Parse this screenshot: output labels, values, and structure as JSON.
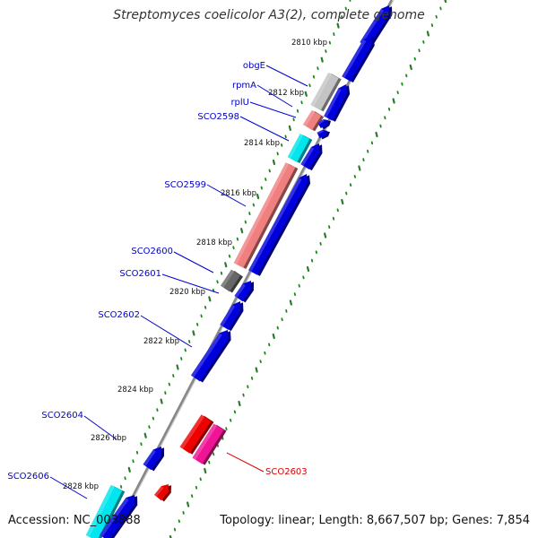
{
  "title": "Streptomyces coelicolor A3(2), complete genome",
  "accession": "Accession: NC_003888",
  "summary": "Topology: linear; Length: 8,667,507 bp; Genes: 7,854",
  "colors": {
    "gene_cds": "#0000dd",
    "gene_label": "#0000cc",
    "highlight_label": "#dd0000",
    "backbone": "#888888",
    "ruler_dots": "#1a8a1a",
    "ruler_ticks": "#2a7a2a"
  },
  "ruler_ticks": [
    {
      "label": "2810 kbp"
    },
    {
      "label": "2812 kbp"
    },
    {
      "label": "2814 kbp"
    },
    {
      "label": "2816 kbp"
    },
    {
      "label": "2818 kbp"
    },
    {
      "label": "2820 kbp"
    },
    {
      "label": "2822 kbp"
    },
    {
      "label": "2824 kbp"
    },
    {
      "label": "2826 kbp"
    },
    {
      "label": "2828 kbp"
    }
  ],
  "gene_labels": [
    {
      "name": "obgE",
      "color": "#0000cc"
    },
    {
      "name": "rpmA",
      "color": "#0000cc"
    },
    {
      "name": "rplU",
      "color": "#0000cc"
    },
    {
      "name": "SCO2598",
      "color": "#0000cc"
    },
    {
      "name": "SCO2599",
      "color": "#0000cc"
    },
    {
      "name": "SCO2600",
      "color": "#0000cc"
    },
    {
      "name": "SCO2601",
      "color": "#0000cc"
    },
    {
      "name": "SCO2602",
      "color": "#0000cc"
    },
    {
      "name": "SCO2604",
      "color": "#0000cc"
    },
    {
      "name": "SCO2606",
      "color": "#0000cc"
    },
    {
      "name": "SCO2603",
      "color": "#dd0000"
    }
  ],
  "features": [
    {
      "name": "blue-gene-top",
      "color": "#0000dd"
    },
    {
      "name": "blue-gene-1",
      "color": "#0000dd"
    },
    {
      "name": "obgE-gene",
      "color": "#c4c4c4"
    },
    {
      "name": "blue-gene-2",
      "color": "#0000dd"
    },
    {
      "name": "rpmA-gene",
      "color": "#f08080"
    },
    {
      "name": "blue-gene-3",
      "color": "#0000dd"
    },
    {
      "name": "blue-gene-4",
      "color": "#0000dd"
    },
    {
      "name": "SCO2598-gene",
      "color": "#00e5ee"
    },
    {
      "name": "blue-gene-5",
      "color": "#0000dd"
    },
    {
      "name": "SCO2599-gene",
      "color": "#f08080"
    },
    {
      "name": "blue-gene-6",
      "color": "#0000dd"
    },
    {
      "name": "SCO2600-gene",
      "color": "#666666"
    },
    {
      "name": "blue-gene-7",
      "color": "#0000dd"
    },
    {
      "name": "blue-gene-8",
      "color": "#0000dd"
    },
    {
      "name": "SCO2602-gene",
      "color": "#0000dd"
    },
    {
      "name": "SCO2604-gene",
      "color": "#ee0000"
    },
    {
      "name": "SCO2603-gene",
      "color": "#ee1493"
    },
    {
      "name": "blue-gene-9",
      "color": "#0000dd"
    },
    {
      "name": "red-gene-small",
      "color": "#ee0000"
    },
    {
      "name": "SCO2606-gene",
      "color": "#00e5ee"
    },
    {
      "name": "blue-gene-10",
      "color": "#0000dd"
    }
  ]
}
